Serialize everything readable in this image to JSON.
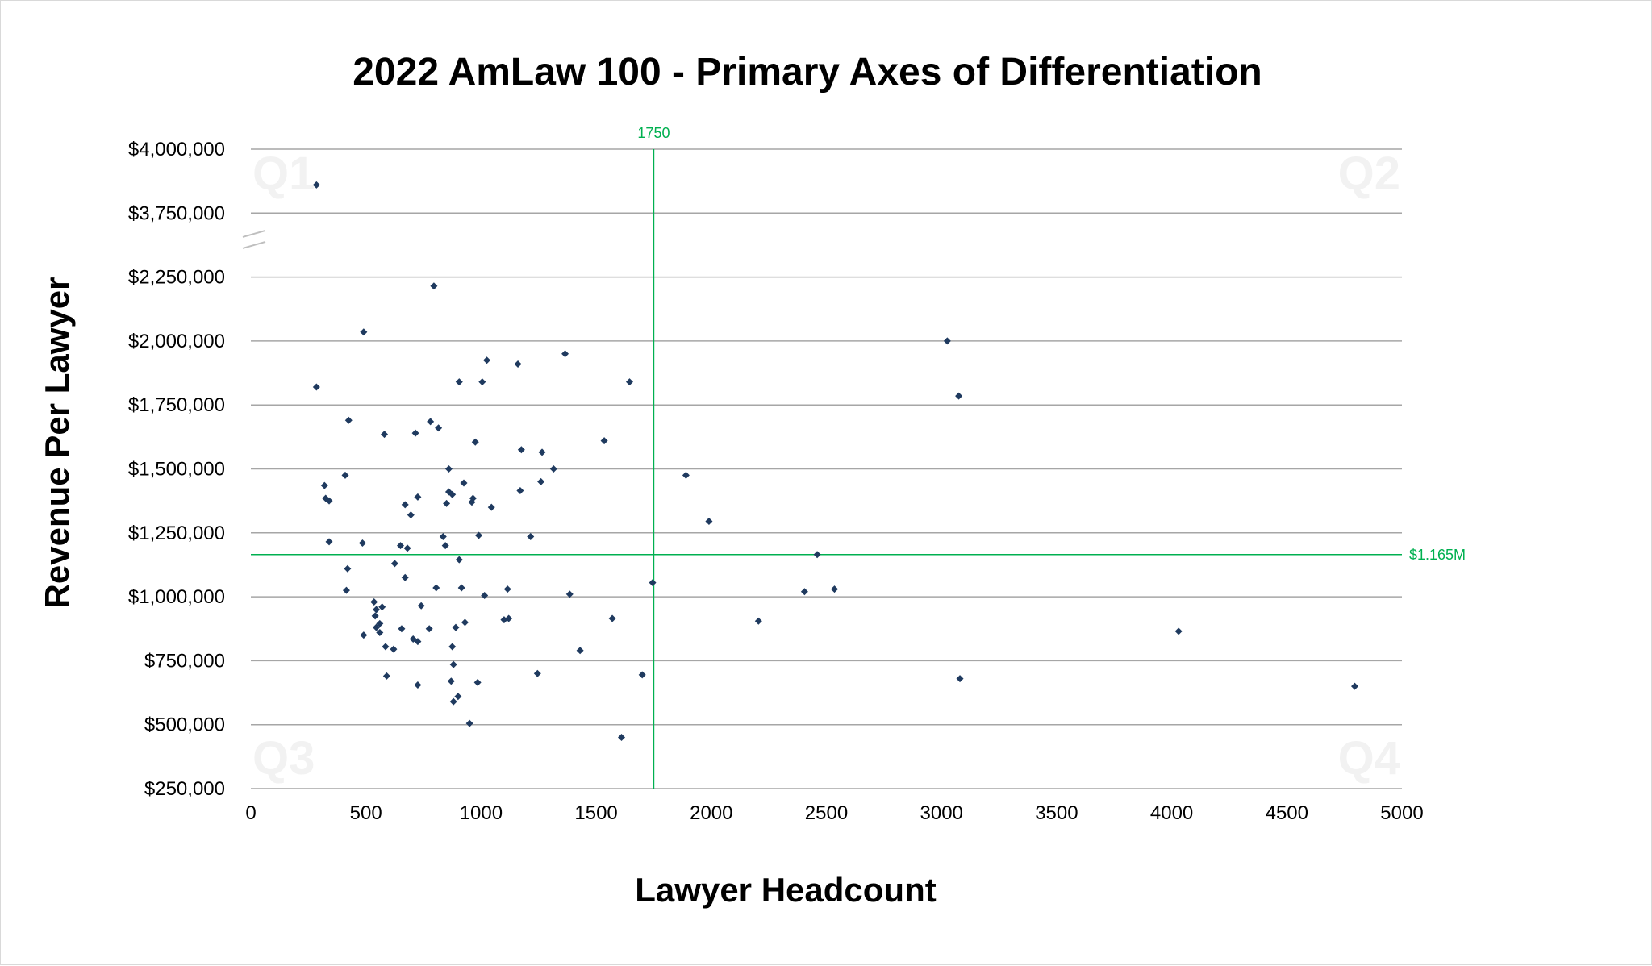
{
  "chart_data": {
    "type": "scatter",
    "title": "2022 AmLaw 100 - Primary Axes of Differentiation",
    "xlabel": "Lawyer Headcount",
    "ylabel": "Revenue Per Lawyer",
    "xlim": [
      0,
      5000
    ],
    "x_ticks": [
      "0",
      "500",
      "1000",
      "1500",
      "2000",
      "2500",
      "3000",
      "3500",
      "4000",
      "4500",
      "5000"
    ],
    "y_ticks": [
      "$250,000",
      "$500,000",
      "$750,000",
      "$1,000,000",
      "$1,250,000",
      "$1,500,000",
      "$1,750,000",
      "$2,000,000",
      "$2,250,000",
      "$3,750,000",
      "$4,000,000"
    ],
    "y_axis_break": {
      "from": 2250000,
      "to": 3750000
    },
    "grid": "horizontal",
    "legend": "none",
    "marker_color": "#1f3a5f",
    "reference_color": "#00b050",
    "reference_lines": {
      "vertical": {
        "x": 1750,
        "label": "1750"
      },
      "horizontal": {
        "y": 1165000,
        "label": "$1.165M"
      }
    },
    "quadrant_labels": [
      "Q1",
      "Q2",
      "Q3",
      "Q4"
    ],
    "points": [
      [
        285,
        3860000
      ],
      [
        795,
        2215000
      ],
      [
        490,
        2035000
      ],
      [
        1025,
        1925000
      ],
      [
        1160,
        1910000
      ],
      [
        1365,
        1950000
      ],
      [
        285,
        1820000
      ],
      [
        905,
        1840000
      ],
      [
        1005,
        1840000
      ],
      [
        1645,
        1840000
      ],
      [
        425,
        1690000
      ],
      [
        780,
        1685000
      ],
      [
        815,
        1660000
      ],
      [
        580,
        1635000
      ],
      [
        715,
        1640000
      ],
      [
        975,
        1605000
      ],
      [
        1535,
        1610000
      ],
      [
        1175,
        1575000
      ],
      [
        1265,
        1565000
      ],
      [
        320,
        1435000
      ],
      [
        860,
        1500000
      ],
      [
        1315,
        1500000
      ],
      [
        410,
        1475000
      ],
      [
        925,
        1445000
      ],
      [
        1260,
        1450000
      ],
      [
        325,
        1385000
      ],
      [
        340,
        1375000
      ],
      [
        860,
        1410000
      ],
      [
        875,
        1400000
      ],
      [
        725,
        1390000
      ],
      [
        965,
        1385000
      ],
      [
        960,
        1370000
      ],
      [
        850,
        1365000
      ],
      [
        1170,
        1415000
      ],
      [
        670,
        1360000
      ],
      [
        1045,
        1350000
      ],
      [
        695,
        1320000
      ],
      [
        1890,
        1475000
      ],
      [
        1990,
        1295000
      ],
      [
        340,
        1215000
      ],
      [
        485,
        1210000
      ],
      [
        650,
        1200000
      ],
      [
        680,
        1190000
      ],
      [
        835,
        1235000
      ],
      [
        845,
        1200000
      ],
      [
        990,
        1240000
      ],
      [
        1215,
        1235000
      ],
      [
        625,
        1130000
      ],
      [
        905,
        1145000
      ],
      [
        420,
        1110000
      ],
      [
        670,
        1075000
      ],
      [
        2460,
        1165000
      ],
      [
        1745,
        1055000
      ],
      [
        415,
        1025000
      ],
      [
        805,
        1035000
      ],
      [
        915,
        1035000
      ],
      [
        1115,
        1030000
      ],
      [
        2535,
        1030000
      ],
      [
        1385,
        1010000
      ],
      [
        1015,
        1005000
      ],
      [
        2405,
        1020000
      ],
      [
        535,
        980000
      ],
      [
        570,
        960000
      ],
      [
        740,
        965000
      ],
      [
        545,
        950000
      ],
      [
        540,
        925000
      ],
      [
        560,
        895000
      ],
      [
        1100,
        910000
      ],
      [
        1120,
        915000
      ],
      [
        1570,
        915000
      ],
      [
        2205,
        905000
      ],
      [
        545,
        880000
      ],
      [
        560,
        860000
      ],
      [
        490,
        850000
      ],
      [
        655,
        875000
      ],
      [
        775,
        875000
      ],
      [
        890,
        880000
      ],
      [
        930,
        900000
      ],
      [
        705,
        835000
      ],
      [
        725,
        825000
      ],
      [
        4030,
        865000
      ],
      [
        585,
        805000
      ],
      [
        620,
        795000
      ],
      [
        875,
        805000
      ],
      [
        1430,
        790000
      ],
      [
        880,
        735000
      ],
      [
        590,
        690000
      ],
      [
        1245,
        700000
      ],
      [
        1700,
        695000
      ],
      [
        3080,
        680000
      ],
      [
        725,
        655000
      ],
      [
        870,
        670000
      ],
      [
        985,
        665000
      ],
      [
        4795,
        650000
      ],
      [
        900,
        610000
      ],
      [
        880,
        590000
      ],
      [
        950,
        505000
      ],
      [
        1610,
        450000
      ],
      [
        3025,
        2000000
      ],
      [
        3075,
        1785000
      ]
    ]
  }
}
